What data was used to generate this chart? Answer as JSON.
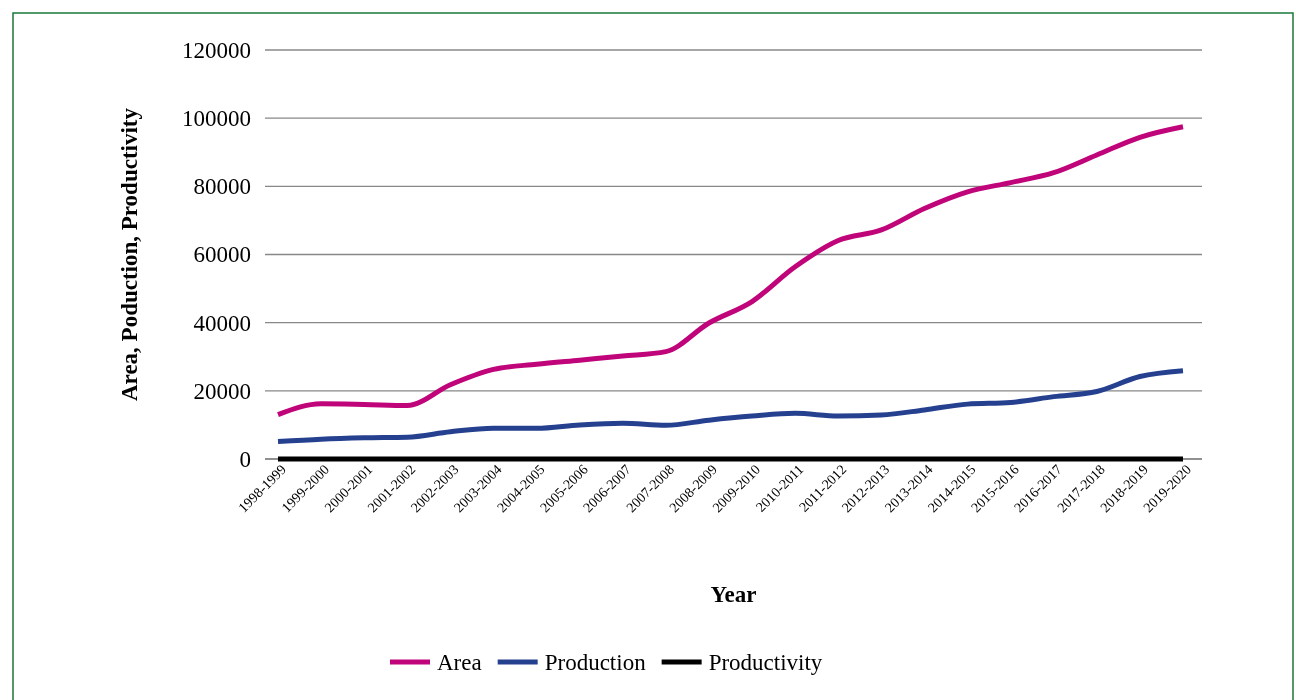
{
  "chart_data": {
    "type": "line",
    "xlabel": "Year",
    "ylabel": "Area, Poduction, Productivity",
    "categories": [
      "1998-1999",
      "1999-2000",
      "2000-2001",
      "2001-2002",
      "2002-2003",
      "2003-2004",
      "2004-2005",
      "2005-2006",
      "2006-2007",
      "2007-2008",
      "2008-2009",
      "2009-2010",
      "2010-2011",
      "2011-2012",
      "2012-2013",
      "2013-2014",
      "2014-2015",
      "2015-2016",
      "2016-2017",
      "2017-2018",
      "2018-2019",
      "2019-2020"
    ],
    "series": [
      {
        "name": "Area",
        "color": "#c0047a",
        "values": [
          13000,
          16200,
          16000,
          15700,
          21800,
          26300,
          27800,
          29000,
          30200,
          31500,
          39900,
          46200,
          56400,
          64100,
          67200,
          73500,
          78400,
          81100,
          84000,
          89200,
          94400,
          97500
        ]
      },
      {
        "name": "Production",
        "color": "#25408f",
        "values": [
          5100,
          5800,
          6200,
          6400,
          8000,
          9000,
          9000,
          10000,
          10500,
          9900,
          11400,
          12600,
          13400,
          12600,
          12900,
          14400,
          16100,
          16600,
          18300,
          19800,
          24200,
          25900
        ]
      },
      {
        "name": "Productivity",
        "color": "#000000",
        "values": [
          0,
          0,
          0,
          0,
          0,
          0,
          0,
          0,
          0,
          0,
          0,
          0,
          0,
          0,
          0,
          0,
          0,
          0,
          0,
          0,
          0,
          0
        ]
      }
    ],
    "ylim": [
      0,
      120000
    ],
    "yticks": [
      0,
      20000,
      40000,
      60000,
      80000,
      100000,
      120000
    ],
    "grid": "y",
    "legend": "bottom",
    "line_style": "solid",
    "marker": "none"
  }
}
